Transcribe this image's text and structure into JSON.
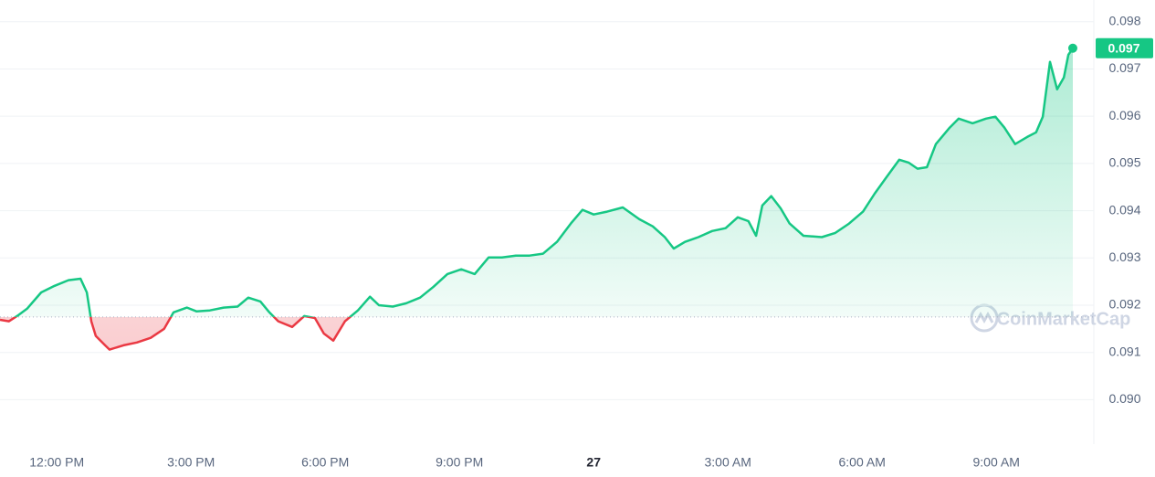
{
  "chart_data": {
    "type": "line",
    "color": "#16c784",
    "down_color": "#ea3943",
    "baseline": 0.09175,
    "watermark": "CoinMarketCap",
    "current_price": {
      "value": 0.09744,
      "label": "0.097"
    },
    "xlim": [
      10.73,
      35.18
    ],
    "ylim": [
      0.08906,
      0.09846
    ],
    "grid": true,
    "yticks": [
      {
        "value": 0.09,
        "label": "0.090"
      },
      0.091,
      0.092,
      0.093,
      0.094,
      0.095,
      0.096,
      0.097,
      0.098
    ],
    "xticks": [
      {
        "value": 12,
        "label": "12:00 PM"
      },
      {
        "value": 15,
        "label": "3:00 PM"
      },
      {
        "value": 18,
        "label": "6:00 PM"
      },
      {
        "value": 21,
        "label": "9:00 PM"
      },
      {
        "value": 24,
        "label": "27"
      },
      {
        "value": 27,
        "label": "3:00 AM"
      },
      {
        "value": 30,
        "label": "6:00 AM"
      },
      {
        "value": 33,
        "label": "9:00 AM"
      }
    ],
    "x": [
      10.73,
      10.93,
      11.14,
      11.34,
      11.65,
      11.95,
      12.26,
      12.53,
      12.67,
      12.77,
      12.87,
      13.08,
      13.18,
      13.49,
      13.79,
      14.1,
      14.4,
      14.61,
      14.91,
      15.12,
      15.42,
      15.73,
      16.04,
      16.28,
      16.55,
      16.75,
      16.95,
      17.26,
      17.53,
      17.77,
      17.97,
      18.18,
      18.44,
      18.73,
      19.0,
      19.2,
      19.51,
      19.81,
      20.12,
      20.42,
      20.73,
      21.04,
      21.34,
      21.65,
      21.95,
      22.26,
      22.57,
      22.87,
      23.18,
      23.49,
      23.75,
      24.0,
      24.3,
      24.65,
      25.02,
      25.32,
      25.59,
      25.79,
      26.04,
      26.34,
      26.65,
      26.95,
      27.22,
      27.46,
      27.63,
      27.77,
      27.97,
      28.18,
      28.38,
      28.69,
      29.1,
      29.4,
      29.71,
      30.02,
      30.28,
      30.53,
      30.83,
      31.04,
      31.24,
      31.45,
      31.65,
      31.96,
      32.16,
      32.47,
      32.77,
      32.98,
      33.18,
      33.42,
      33.69,
      33.89,
      34.04,
      34.2,
      34.36,
      34.51,
      34.61,
      34.71
    ],
    "values": [
      0.09169,
      0.09166,
      0.09179,
      0.09193,
      0.09227,
      0.09241,
      0.09253,
      0.09256,
      0.09227,
      0.09166,
      0.09135,
      0.09115,
      0.09106,
      0.09115,
      0.09121,
      0.09131,
      0.0915,
      0.09185,
      0.09195,
      0.09187,
      0.09189,
      0.09195,
      0.09197,
      0.09216,
      0.09208,
      0.09185,
      0.09166,
      0.09154,
      0.09177,
      0.09173,
      0.0914,
      0.09125,
      0.09166,
      0.09189,
      0.09218,
      0.092,
      0.09197,
      0.09204,
      0.09216,
      0.09239,
      0.09266,
      0.09276,
      0.09266,
      0.09301,
      0.09301,
      0.09305,
      0.09305,
      0.09309,
      0.09334,
      0.09373,
      0.09402,
      0.09392,
      0.09398,
      0.09407,
      0.09382,
      0.09367,
      0.09344,
      0.0932,
      0.09334,
      0.09344,
      0.09357,
      0.09363,
      0.09386,
      0.09378,
      0.09347,
      0.09411,
      0.09431,
      0.09405,
      0.09373,
      0.09347,
      0.09344,
      0.09353,
      0.09373,
      0.09398,
      0.09436,
      0.09469,
      0.09508,
      0.09502,
      0.09489,
      0.09492,
      0.09541,
      0.09576,
      0.09595,
      0.09585,
      0.09595,
      0.09599,
      0.09576,
      0.09541,
      0.09556,
      0.09566,
      0.09599,
      0.09715,
      0.09657,
      0.09682,
      0.0973,
      0.09744
    ]
  }
}
